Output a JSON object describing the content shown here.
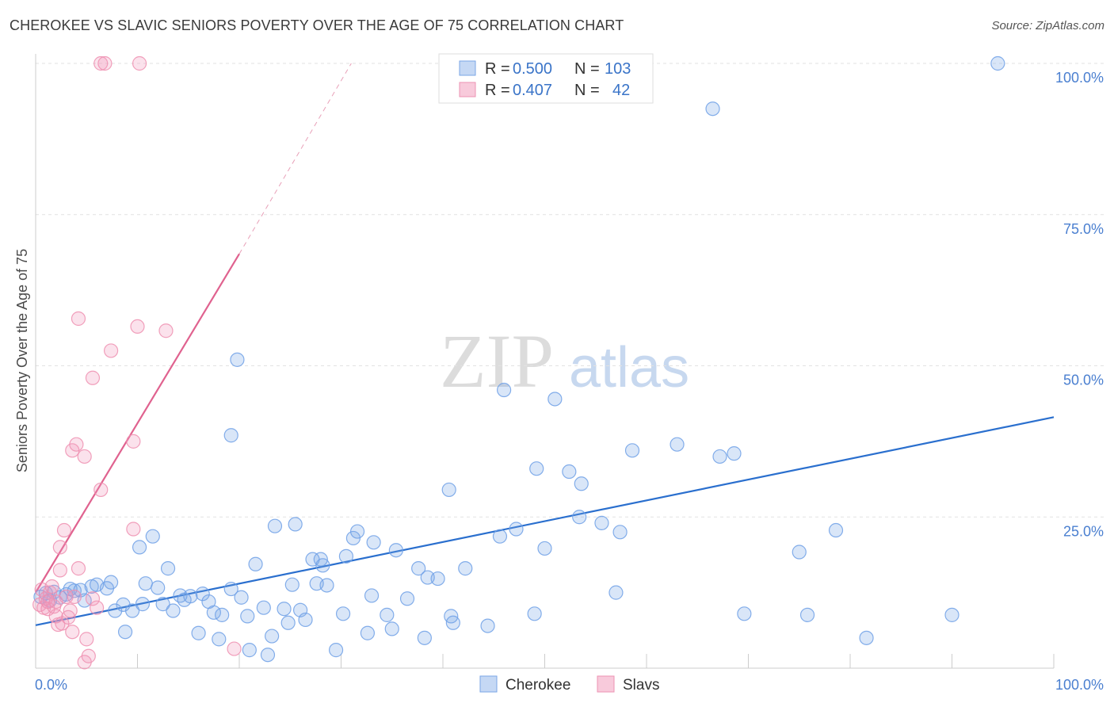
{
  "title": "CHEROKEE VS SLAVIC SENIORS POVERTY OVER THE AGE OF 75 CORRELATION CHART",
  "source": "Source: ZipAtlas.com",
  "watermark": {
    "zip": "ZIP",
    "atlas": "atlas"
  },
  "chart_data": {
    "type": "scatter",
    "title": "CHEROKEE VS SLAVIC SENIORS POVERTY OVER THE AGE OF 75 CORRELATION CHART",
    "xlabel": "",
    "ylabel": "Seniors Poverty Over the Age of 75",
    "xlim": [
      0,
      100
    ],
    "ylim": [
      0,
      100
    ],
    "x_tick_labels": [
      "0.0%",
      "100.0%"
    ],
    "y_tick_labels": [
      {
        "value": 100,
        "label": "100.0%"
      },
      {
        "value": 75,
        "label": "75.0%"
      },
      {
        "value": 50,
        "label": "50.0%"
      },
      {
        "value": 25,
        "label": "25.0%"
      }
    ],
    "legend": {
      "entries": [
        {
          "name": "Cherokee",
          "r_label": "R =",
          "r": "0.500",
          "n_label": "N =",
          "n": "103"
        },
        {
          "name": "Slavs",
          "r_label": "R =",
          "r": "0.407",
          "n_label": "N =",
          "n": "42"
        }
      ]
    },
    "series": [
      {
        "name": "Cherokee",
        "color": "#6fa0e6",
        "trend_color": "#2a6fce",
        "trend": {
          "x0": 0,
          "y0": 7.1,
          "x1": 100,
          "y1": 41.5
        },
        "points": [
          [
            0.5,
            11.8
          ],
          [
            1.0,
            12.4
          ],
          [
            1.4,
            11.2
          ],
          [
            1.8,
            12.6
          ],
          [
            2.4,
            11.7
          ],
          [
            3.0,
            12.2
          ],
          [
            3.4,
            13.1
          ],
          [
            3.8,
            12.8
          ],
          [
            4.4,
            12.9
          ],
          [
            4.8,
            11.2
          ],
          [
            5.5,
            13.5
          ],
          [
            6.0,
            13.8
          ],
          [
            7.0,
            13.2
          ],
          [
            7.4,
            14.2
          ],
          [
            7.8,
            9.5
          ],
          [
            8.6,
            10.5
          ],
          [
            8.8,
            6.0
          ],
          [
            9.5,
            9.5
          ],
          [
            10.2,
            20.0
          ],
          [
            10.5,
            10.6
          ],
          [
            10.8,
            14.0
          ],
          [
            11.5,
            21.8
          ],
          [
            12.0,
            13.3
          ],
          [
            12.5,
            10.6
          ],
          [
            13.0,
            16.5
          ],
          [
            13.5,
            9.5
          ],
          [
            14.2,
            12.0
          ],
          [
            14.6,
            11.3
          ],
          [
            15.2,
            11.9
          ],
          [
            16.0,
            5.8
          ],
          [
            16.4,
            12.3
          ],
          [
            17.0,
            11.0
          ],
          [
            17.5,
            9.2
          ],
          [
            18.0,
            4.8
          ],
          [
            18.3,
            8.8
          ],
          [
            19.2,
            13.1
          ],
          [
            19.2,
            38.5
          ],
          [
            19.8,
            51.0
          ],
          [
            20.2,
            11.7
          ],
          [
            20.8,
            8.6
          ],
          [
            21.0,
            3.0
          ],
          [
            21.6,
            17.2
          ],
          [
            22.4,
            10.0
          ],
          [
            22.8,
            2.2
          ],
          [
            23.2,
            5.3
          ],
          [
            23.5,
            23.5
          ],
          [
            24.4,
            9.8
          ],
          [
            24.8,
            7.5
          ],
          [
            25.2,
            13.8
          ],
          [
            25.5,
            23.8
          ],
          [
            26.0,
            9.6
          ],
          [
            26.5,
            8.0
          ],
          [
            27.2,
            18.0
          ],
          [
            27.6,
            14.0
          ],
          [
            28.0,
            18.0
          ],
          [
            28.6,
            13.7
          ],
          [
            29.5,
            3.0
          ],
          [
            30.2,
            9.0
          ],
          [
            30.5,
            18.5
          ],
          [
            31.2,
            21.5
          ],
          [
            31.6,
            22.6
          ],
          [
            32.6,
            5.8
          ],
          [
            33.0,
            12.0
          ],
          [
            33.2,
            20.8
          ],
          [
            34.5,
            8.8
          ],
          [
            35.0,
            6.5
          ],
          [
            35.4,
            19.5
          ],
          [
            36.5,
            11.5
          ],
          [
            37.6,
            16.5
          ],
          [
            38.2,
            5.0
          ],
          [
            38.5,
            15.0
          ],
          [
            39.5,
            14.8
          ],
          [
            40.8,
            8.6
          ],
          [
            41.0,
            7.5
          ],
          [
            40.6,
            29.5
          ],
          [
            42.2,
            16.5
          ],
          [
            44.4,
            7.0
          ],
          [
            45.6,
            21.8
          ],
          [
            47.2,
            23.0
          ],
          [
            49.0,
            9.0
          ],
          [
            49.2,
            33.0
          ],
          [
            50.0,
            19.8
          ],
          [
            51.0,
            44.5
          ],
          [
            52.4,
            32.5
          ],
          [
            53.4,
            25.0
          ],
          [
            53.6,
            30.5
          ],
          [
            55.6,
            24.0
          ],
          [
            57.0,
            12.5
          ],
          [
            57.4,
            22.5
          ],
          [
            58.6,
            36.0
          ],
          [
            63.0,
            37.0
          ],
          [
            66.5,
            92.5
          ],
          [
            67.2,
            35.0
          ],
          [
            68.6,
            35.5
          ],
          [
            69.6,
            9.0
          ],
          [
            75.0,
            19.2
          ],
          [
            75.8,
            8.8
          ],
          [
            78.6,
            22.8
          ],
          [
            81.6,
            5.0
          ],
          [
            90.0,
            8.8
          ],
          [
            94.5,
            100.0
          ],
          [
            28.2,
            17.0
          ],
          [
            46.0,
            46.0
          ]
        ]
      },
      {
        "name": "Slavs",
        "color": "#ee8fb0",
        "trend_color": "#e0628f",
        "trend": {
          "x0": 0,
          "y0": 12.5,
          "x1": 20,
          "y1": 68.5
        },
        "trend_dashed": {
          "x0": 20,
          "y0": 68.5,
          "x1": 31,
          "y1": 100
        },
        "points": [
          [
            0.4,
            10.5
          ],
          [
            0.6,
            13.0
          ],
          [
            0.8,
            10.0
          ],
          [
            1.0,
            11.5
          ],
          [
            1.2,
            9.8
          ],
          [
            1.4,
            12.5
          ],
          [
            1.6,
            13.5
          ],
          [
            1.8,
            10.2
          ],
          [
            2.0,
            11.0
          ],
          [
            2.2,
            7.2
          ],
          [
            2.4,
            20.0
          ],
          [
            2.4,
            16.2
          ],
          [
            2.6,
            7.4
          ],
          [
            2.8,
            22.8
          ],
          [
            3.0,
            11.8
          ],
          [
            3.2,
            8.4
          ],
          [
            3.4,
            9.5
          ],
          [
            3.6,
            36.0
          ],
          [
            3.6,
            6.0
          ],
          [
            3.8,
            11.8
          ],
          [
            4.0,
            37.0
          ],
          [
            4.2,
            57.8
          ],
          [
            4.2,
            16.5
          ],
          [
            4.8,
            35.0
          ],
          [
            4.8,
            1.0
          ],
          [
            5.0,
            4.8
          ],
          [
            5.2,
            2.0
          ],
          [
            5.6,
            48.0
          ],
          [
            5.6,
            11.5
          ],
          [
            6.0,
            10.0
          ],
          [
            6.4,
            29.5
          ],
          [
            6.4,
            100.0
          ],
          [
            6.8,
            100.0
          ],
          [
            7.4,
            52.5
          ],
          [
            9.6,
            23.0
          ],
          [
            9.6,
            37.5
          ],
          [
            10.0,
            56.5
          ],
          [
            10.2,
            100.0
          ],
          [
            12.8,
            55.8
          ],
          [
            19.5,
            3.2
          ],
          [
            2.0,
            8.6
          ],
          [
            1.2,
            11.0
          ]
        ]
      }
    ]
  }
}
